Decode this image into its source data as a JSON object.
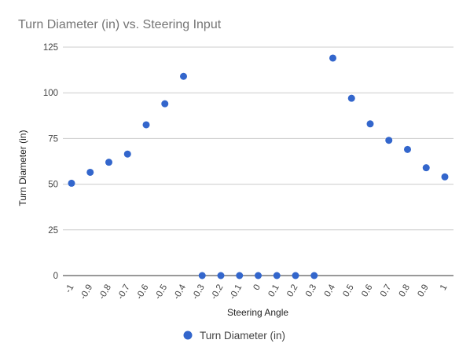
{
  "chart_data": {
    "type": "scatter",
    "title": "Turn Diameter (in) vs. Steering Input",
    "xlabel": "Steering Angle",
    "ylabel": "Turn Diameter (in)",
    "x_ticks": [
      "-1",
      "-0.9",
      "-0.8",
      "-0.7",
      "-0.6",
      "-0.5",
      "-0.4",
      "-0.3",
      "-0.2",
      "-0.1",
      "0",
      "0.1",
      "0.2",
      "0.3",
      "0.4",
      "0.5",
      "0.6",
      "0.7",
      "0.8",
      "0.9",
      "1"
    ],
    "y_ticks": [
      "0",
      "25",
      "50",
      "75",
      "100",
      "125"
    ],
    "xlim": [
      -1,
      1
    ],
    "ylim": [
      0,
      125
    ],
    "grid": true,
    "legend_position": "bottom",
    "series": [
      {
        "name": "Turn Diameter (in)",
        "color": "#3366cc",
        "x": [
          -1,
          -0.9,
          -0.8,
          -0.7,
          -0.6,
          -0.5,
          -0.4,
          -0.3,
          -0.2,
          -0.1,
          0,
          0.1,
          0.2,
          0.3,
          0.4,
          0.5,
          0.6,
          0.7,
          0.8,
          0.9,
          1
        ],
        "y": [
          50.5,
          56.5,
          62,
          66.5,
          82.5,
          94,
          109,
          0,
          0,
          0,
          0,
          0,
          0,
          0,
          119,
          97,
          83,
          74,
          69,
          59,
          54
        ]
      }
    ]
  }
}
